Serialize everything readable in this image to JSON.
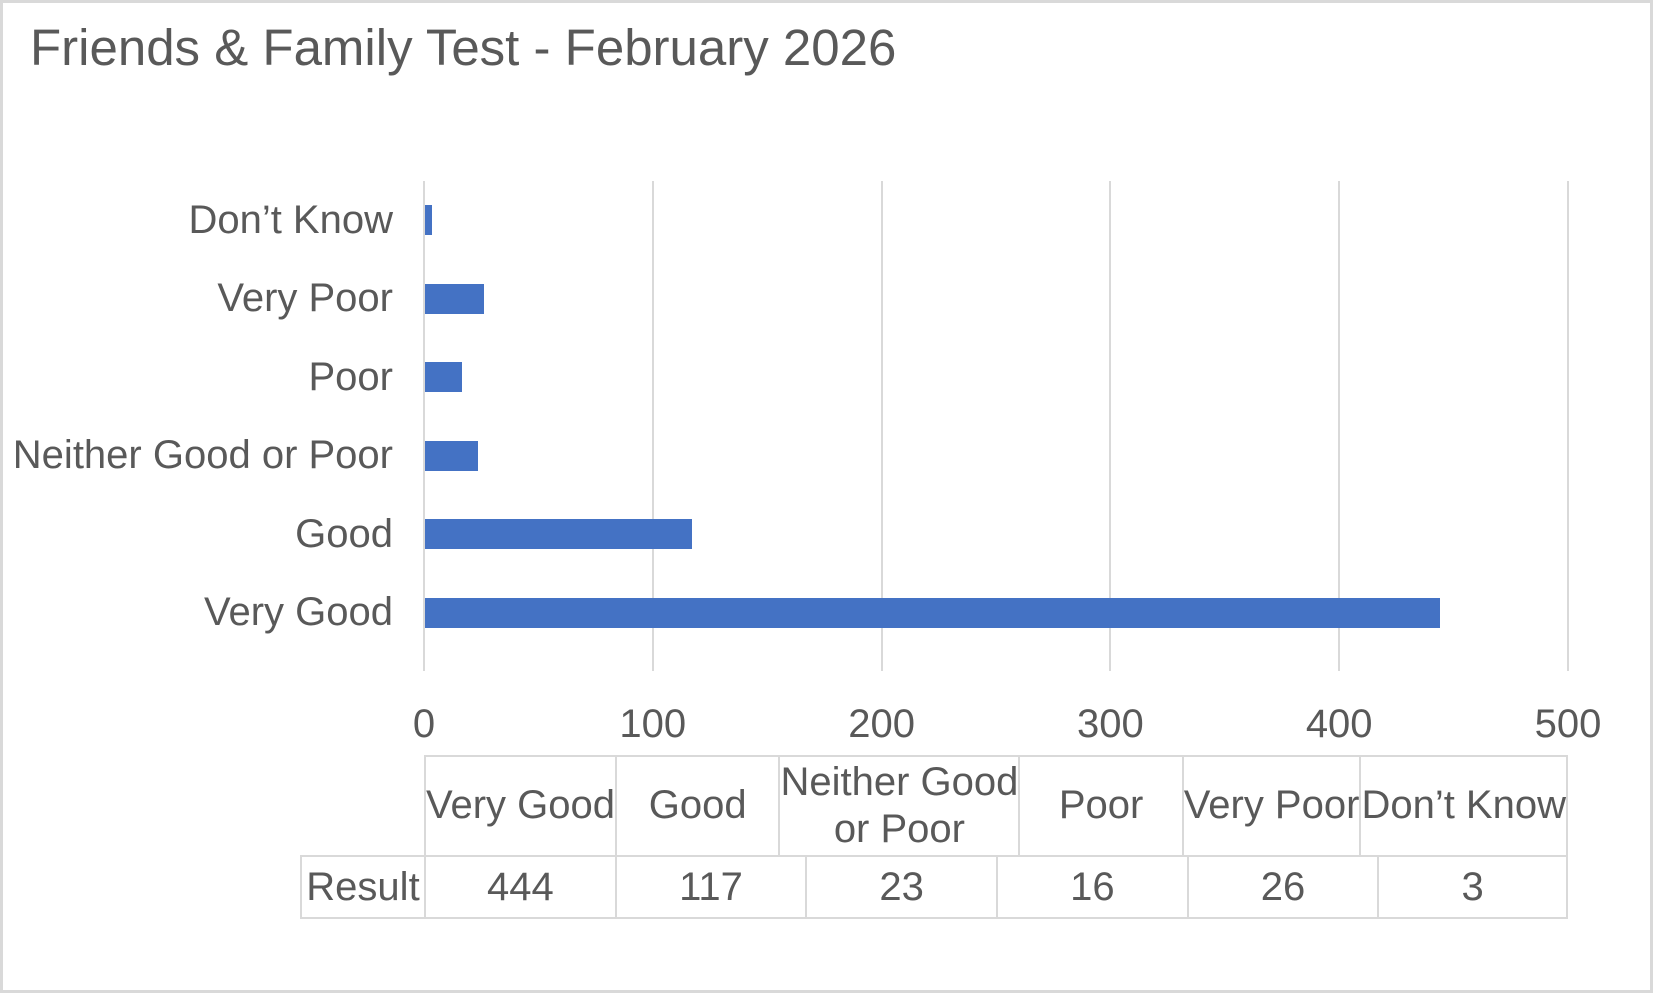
{
  "chart_data": {
    "type": "bar",
    "orientation": "horizontal-bars",
    "title": "Friends & Family Test - February 2026",
    "categories": [
      "Don’t Know",
      "Very Poor",
      "Poor",
      "Neither Good or Poor",
      "Good",
      "Very Good"
    ],
    "series": [
      {
        "name": "Result",
        "values": [
          3,
          26,
          16,
          23,
          117,
          444
        ]
      }
    ],
    "xlabel": "",
    "ylabel": "",
    "xlim": [
      0,
      500
    ],
    "x_ticks": [
      0,
      100,
      200,
      300,
      400,
      500
    ],
    "grid": true,
    "legend": false
  },
  "data_table": {
    "row_label": "Result",
    "columns": [
      "Very Good",
      "Good",
      "Neither Good or Poor",
      "Poor",
      "Very Poor",
      "Don’t Know"
    ],
    "column_display_lines": [
      [
        "Very Good"
      ],
      [
        "Good"
      ],
      [
        "Neither Good",
        "or Poor"
      ],
      [
        "Poor"
      ],
      [
        "Very Poor"
      ],
      [
        "Don’t Know"
      ]
    ],
    "values": [
      444,
      117,
      23,
      16,
      26,
      3
    ]
  },
  "colors": {
    "bar": "#4472C4",
    "gridline": "#D9D9D9",
    "text": "#595959",
    "table_border": "#D9D9D9",
    "canvas_border": "#D9D9D9"
  }
}
